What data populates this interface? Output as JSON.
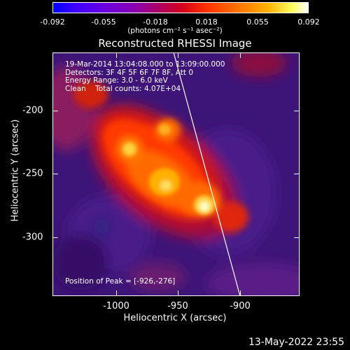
{
  "colorbar": {
    "ticks": [
      "-0.092",
      "-0.055",
      "-0.018",
      "0.018",
      "0.055",
      "0.092"
    ],
    "units": "(photons cm⁻² s⁻¹ asec⁻²)"
  },
  "title": "Reconstructed RHESSI Image",
  "info": {
    "line1": "19-Mar-2014 13:04:08.000 to 13:09:00.000",
    "line2": "Detectors: 3F 4F 5F 6F 7F 8F, Att 0",
    "line3": "Energy Range: 3.0 - 6.0 keV",
    "line4": "Clean    Total counts: 4.07E+04",
    "peak": "Position of Peak = [-926,-276]"
  },
  "axes": {
    "xlabel": "Heliocentric X (arcsec)",
    "ylabel": "Heliocentric Y (arcsec)",
    "xticks": [
      "-1000",
      "-950",
      "-900"
    ],
    "yticks": [
      "-200",
      "-250",
      "-300"
    ]
  },
  "footer_date": "13-May-2022 23:55",
  "colors": {
    "background": "#000000",
    "foreground": "#ffffff",
    "image_base": "#3d1578"
  }
}
